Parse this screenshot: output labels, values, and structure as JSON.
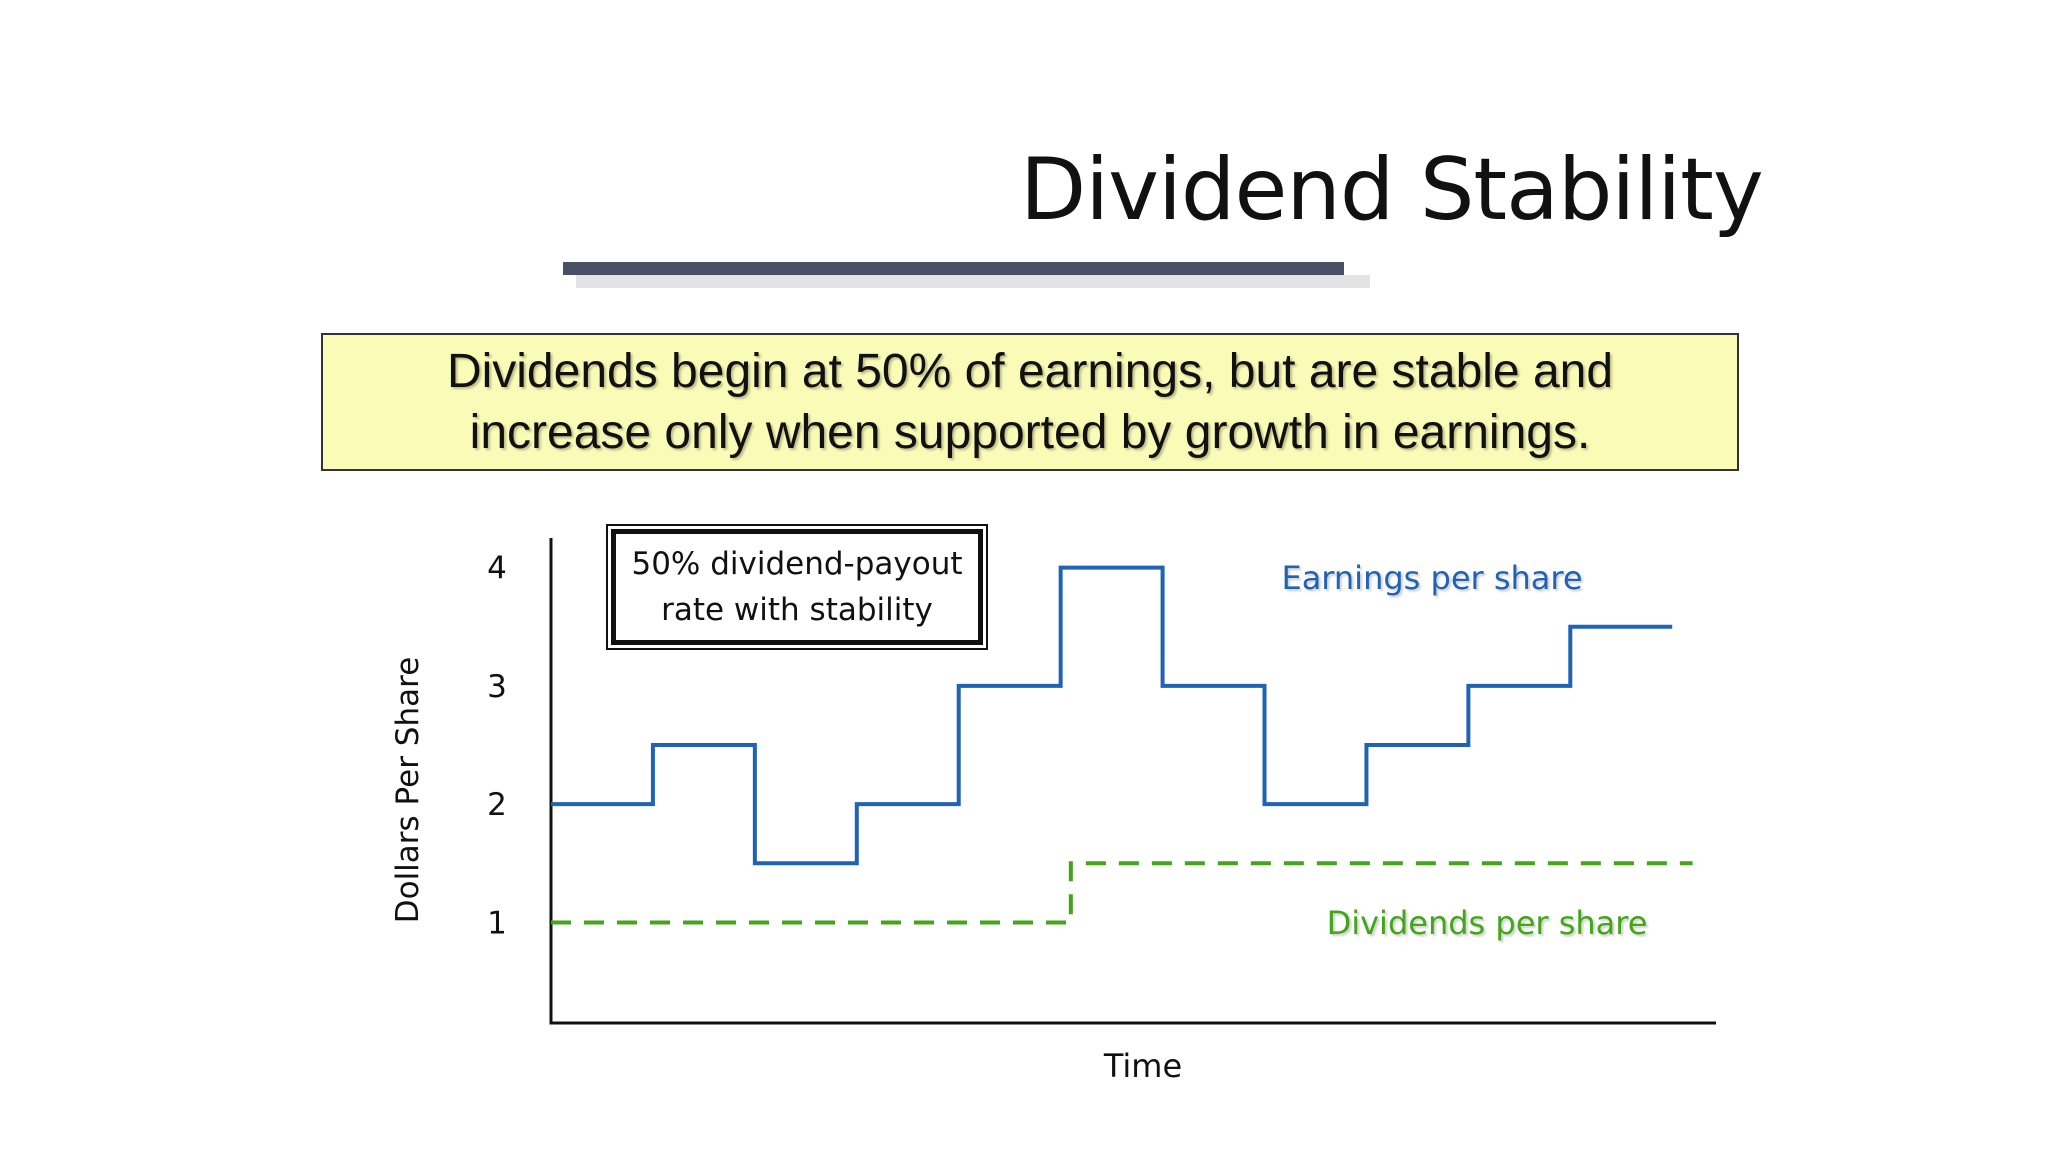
{
  "slide": {
    "title": "Dividend Stability",
    "callout_text": "Dividends begin at 50% of earnings, but are stable and increase only when supported by growth in earnings.",
    "note_box": "50% dividend-payout rate with stability"
  },
  "colors": {
    "earnings": "#1f63b5",
    "dividends": "#43a519",
    "callout_bg": "#fbfbb8",
    "title_rule": "#475066"
  },
  "chart_data": {
    "type": "line",
    "step": true,
    "xlabel": "Time",
    "ylabel": "Dollars Per Share",
    "y_ticks": [
      1,
      2,
      3,
      4
    ],
    "ylim": [
      0.15,
      4.25
    ],
    "xlim": [
      0,
      11.4
    ],
    "x_ticks_shown": false,
    "grid": false,
    "series": [
      {
        "name": "Earnings per share",
        "color": "#1f63b5",
        "dashed": false,
        "x": [
          0,
          1,
          2,
          3,
          4,
          5,
          6,
          7,
          8,
          9,
          10,
          11
        ],
        "values": [
          2.0,
          2.5,
          1.5,
          2.0,
          3.0,
          4.0,
          3.0,
          2.0,
          2.5,
          3.0,
          3.5,
          3.5
        ]
      },
      {
        "name": "Dividends per share",
        "color": "#43a519",
        "dashed": true,
        "x": [
          0,
          5.1,
          11.2
        ],
        "values": [
          1.0,
          1.5,
          1.5
        ]
      }
    ]
  }
}
